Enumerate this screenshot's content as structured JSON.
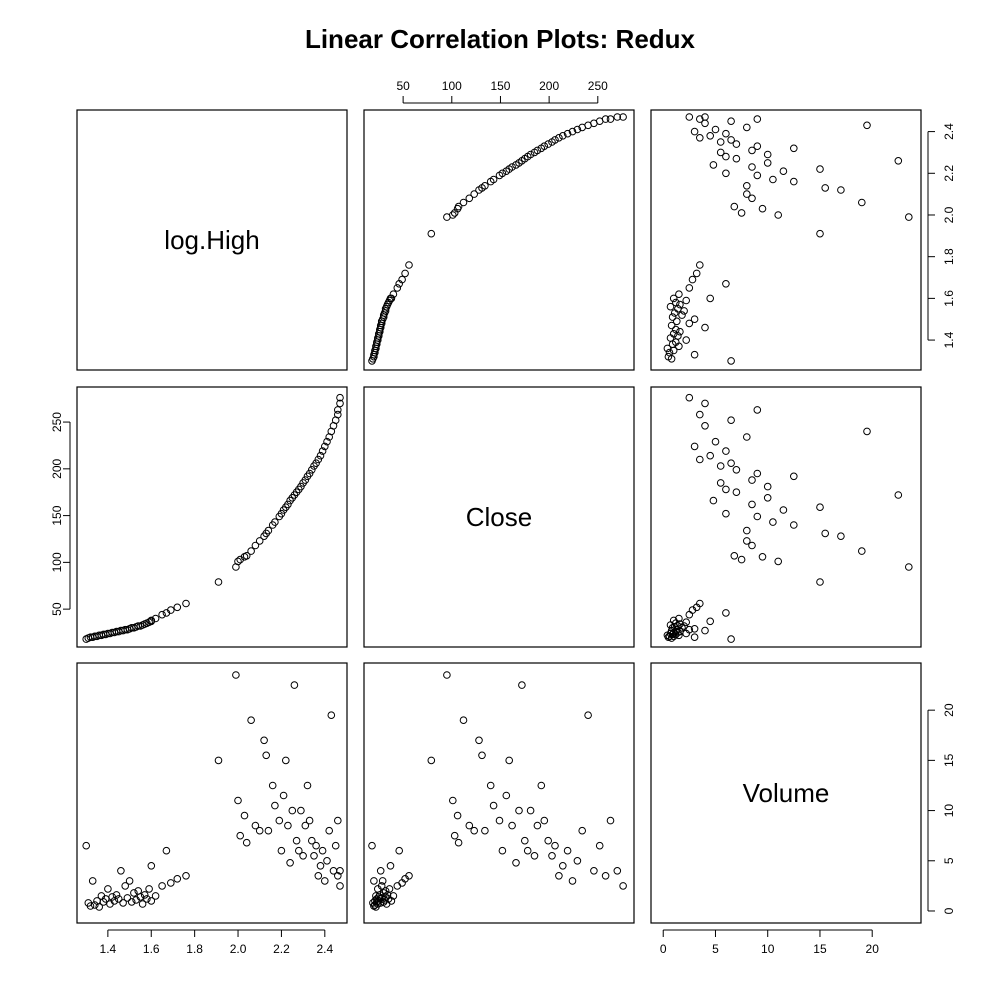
{
  "chart_data": {
    "type": "scatter",
    "title": "Linear Correlation Plots: Redux",
    "variables": [
      "log.High",
      "Close",
      "Volume"
    ],
    "ranges": {
      "log.High": [
        1.29,
        2.47
      ],
      "Close": [
        17,
        280
      ],
      "Volume": [
        -0.5,
        24
      ]
    },
    "ticks": {
      "log.High": [
        "1.4",
        "1.6",
        "1.8",
        "2.0",
        "2.2",
        "2.4"
      ],
      "Close": [
        "50",
        "100",
        "150",
        "200",
        "250"
      ],
      "Volume": [
        "0",
        "5",
        "10",
        "15",
        "20"
      ]
    },
    "grid": false,
    "legend": "none",
    "point_style": "open circle",
    "points": [
      [
        1.3,
        18,
        6.5
      ],
      [
        1.31,
        19,
        0.8
      ],
      [
        1.32,
        20,
        0.5
      ],
      [
        1.33,
        20,
        3.0
      ],
      [
        1.34,
        21,
        0.6
      ],
      [
        1.35,
        21,
        1.0
      ],
      [
        1.36,
        22,
        0.4
      ],
      [
        1.37,
        22,
        1.5
      ],
      [
        1.38,
        23,
        0.9
      ],
      [
        1.39,
        23,
        1.2
      ],
      [
        1.4,
        24,
        2.2
      ],
      [
        1.41,
        24,
        0.7
      ],
      [
        1.42,
        25,
        1.4
      ],
      [
        1.43,
        25,
        1.0
      ],
      [
        1.44,
        26,
        1.6
      ],
      [
        1.45,
        26,
        1.2
      ],
      [
        1.46,
        27,
        4.0
      ],
      [
        1.47,
        27,
        0.8
      ],
      [
        1.48,
        28,
        2.5
      ],
      [
        1.49,
        28,
        1.3
      ],
      [
        1.5,
        29,
        3.0
      ],
      [
        1.51,
        30,
        0.9
      ],
      [
        1.52,
        30,
        1.8
      ],
      [
        1.53,
        31,
        1.1
      ],
      [
        1.54,
        32,
        2.0
      ],
      [
        1.55,
        32,
        1.4
      ],
      [
        1.56,
        33,
        0.7
      ],
      [
        1.57,
        34,
        1.6
      ],
      [
        1.58,
        35,
        1.2
      ],
      [
        1.59,
        36,
        2.2
      ],
      [
        1.6,
        38,
        1.0
      ],
      [
        1.6,
        37,
        4.5
      ],
      [
        1.62,
        40,
        1.5
      ],
      [
        1.65,
        44,
        2.5
      ],
      [
        1.67,
        46,
        6.0
      ],
      [
        1.69,
        49,
        2.8
      ],
      [
        1.72,
        52,
        3.2
      ],
      [
        1.76,
        56,
        3.5
      ],
      [
        1.91,
        79,
        15.0
      ],
      [
        1.99,
        95,
        23.5
      ],
      [
        2.0,
        101,
        11.0
      ],
      [
        2.01,
        103,
        7.5
      ],
      [
        2.03,
        106,
        9.5
      ],
      [
        2.04,
        107,
        6.8
      ],
      [
        2.06,
        112,
        19.0
      ],
      [
        2.08,
        118,
        8.5
      ],
      [
        2.1,
        123,
        8.0
      ],
      [
        2.12,
        128,
        17.0
      ],
      [
        2.13,
        131,
        15.5
      ],
      [
        2.14,
        134,
        8.0
      ],
      [
        2.16,
        140,
        12.5
      ],
      [
        2.17,
        143,
        10.5
      ],
      [
        2.19,
        149,
        9.0
      ],
      [
        2.2,
        152,
        6.0
      ],
      [
        2.21,
        156,
        11.5
      ],
      [
        2.22,
        159,
        15.0
      ],
      [
        2.23,
        162,
        8.5
      ],
      [
        2.24,
        166,
        4.8
      ],
      [
        2.25,
        169,
        10.0
      ],
      [
        2.26,
        172,
        22.5
      ],
      [
        2.27,
        175,
        7.0
      ],
      [
        2.28,
        178,
        6.0
      ],
      [
        2.29,
        181,
        10.0
      ],
      [
        2.3,
        185,
        5.5
      ],
      [
        2.31,
        188,
        8.5
      ],
      [
        2.32,
        192,
        12.5
      ],
      [
        2.33,
        195,
        9.0
      ],
      [
        2.34,
        199,
        7.0
      ],
      [
        2.35,
        203,
        5.5
      ],
      [
        2.36,
        206,
        6.5
      ],
      [
        2.37,
        210,
        3.5
      ],
      [
        2.38,
        214,
        4.5
      ],
      [
        2.39,
        219,
        6.0
      ],
      [
        2.4,
        224,
        3.0
      ],
      [
        2.41,
        229,
        5.0
      ],
      [
        2.42,
        234,
        8.0
      ],
      [
        2.43,
        240,
        19.5
      ],
      [
        2.44,
        246,
        4.0
      ],
      [
        2.45,
        252,
        6.5
      ],
      [
        2.46,
        258,
        3.5
      ],
      [
        2.46,
        263,
        9.0
      ],
      [
        2.47,
        270,
        4.0
      ],
      [
        2.47,
        276,
        2.5
      ]
    ]
  }
}
